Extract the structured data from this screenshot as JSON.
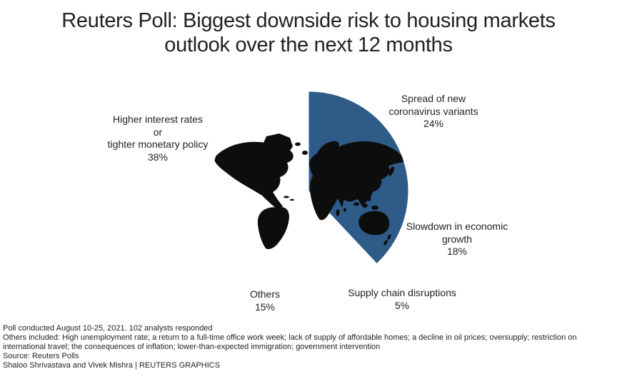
{
  "title": {
    "lines": [
      "Reuters Poll: Biggest downside risk to housing markets",
      "outlook over the next 12 months"
    ]
  },
  "chart_data": {
    "type": "pie",
    "title": "Reuters Poll: Biggest downside risk to housing markets outlook over the next 12 months",
    "start_angle_deg": 0,
    "direction": "clockwise",
    "slices": [
      {
        "label": "Spread of new coronavirus variants",
        "value_pct": 24,
        "color": "#c7e1d9"
      },
      {
        "label": "Slowdown in economic growth",
        "value_pct": 18,
        "color": "#8abdc9"
      },
      {
        "label": "Supply chain disruptions",
        "value_pct": 5,
        "color": "#41a0b8"
      },
      {
        "label": "Others",
        "value_pct": 15,
        "color": "#2c7ea6"
      },
      {
        "label": "Higher interest rates or tighter monetary policy",
        "value_pct": 38,
        "color": "#2e5b88"
      }
    ],
    "overlay": "black world map silhouette over the pie",
    "map_color": "#0d0d0d",
    "legend_position": "labels around pie"
  },
  "pie_labels": {
    "interest": {
      "lines": [
        "Higher interest rates",
        "or",
        "tighter monetary policy",
        "38%"
      ]
    },
    "variants": {
      "lines": [
        "Spread of new",
        "coronavirus variants",
        "24%"
      ]
    },
    "slowdown": {
      "lines": [
        "Slowdown in economic",
        "growth",
        "18%"
      ]
    },
    "supply": {
      "lines": [
        "Supply chain disruptions",
        "5%"
      ]
    },
    "others": {
      "lines": [
        "Others",
        "15%"
      ]
    }
  },
  "footnotes": {
    "poll_info": "Poll conducted August 10-25, 2021. 102 analysts responded",
    "others_included": "Others included: High unemployment rate; a return to a full-time office work week; lack of supply of affordable homes; a decline in oil prices; oversupply; restriction on international travel; the consequences of inflation; lower-than-expected immigration; government intervention",
    "source": "Source: Reuters Polls",
    "credit": "Shaloo Shrivastava and Vivek Mishra | REUTERS GRAPHICS"
  }
}
